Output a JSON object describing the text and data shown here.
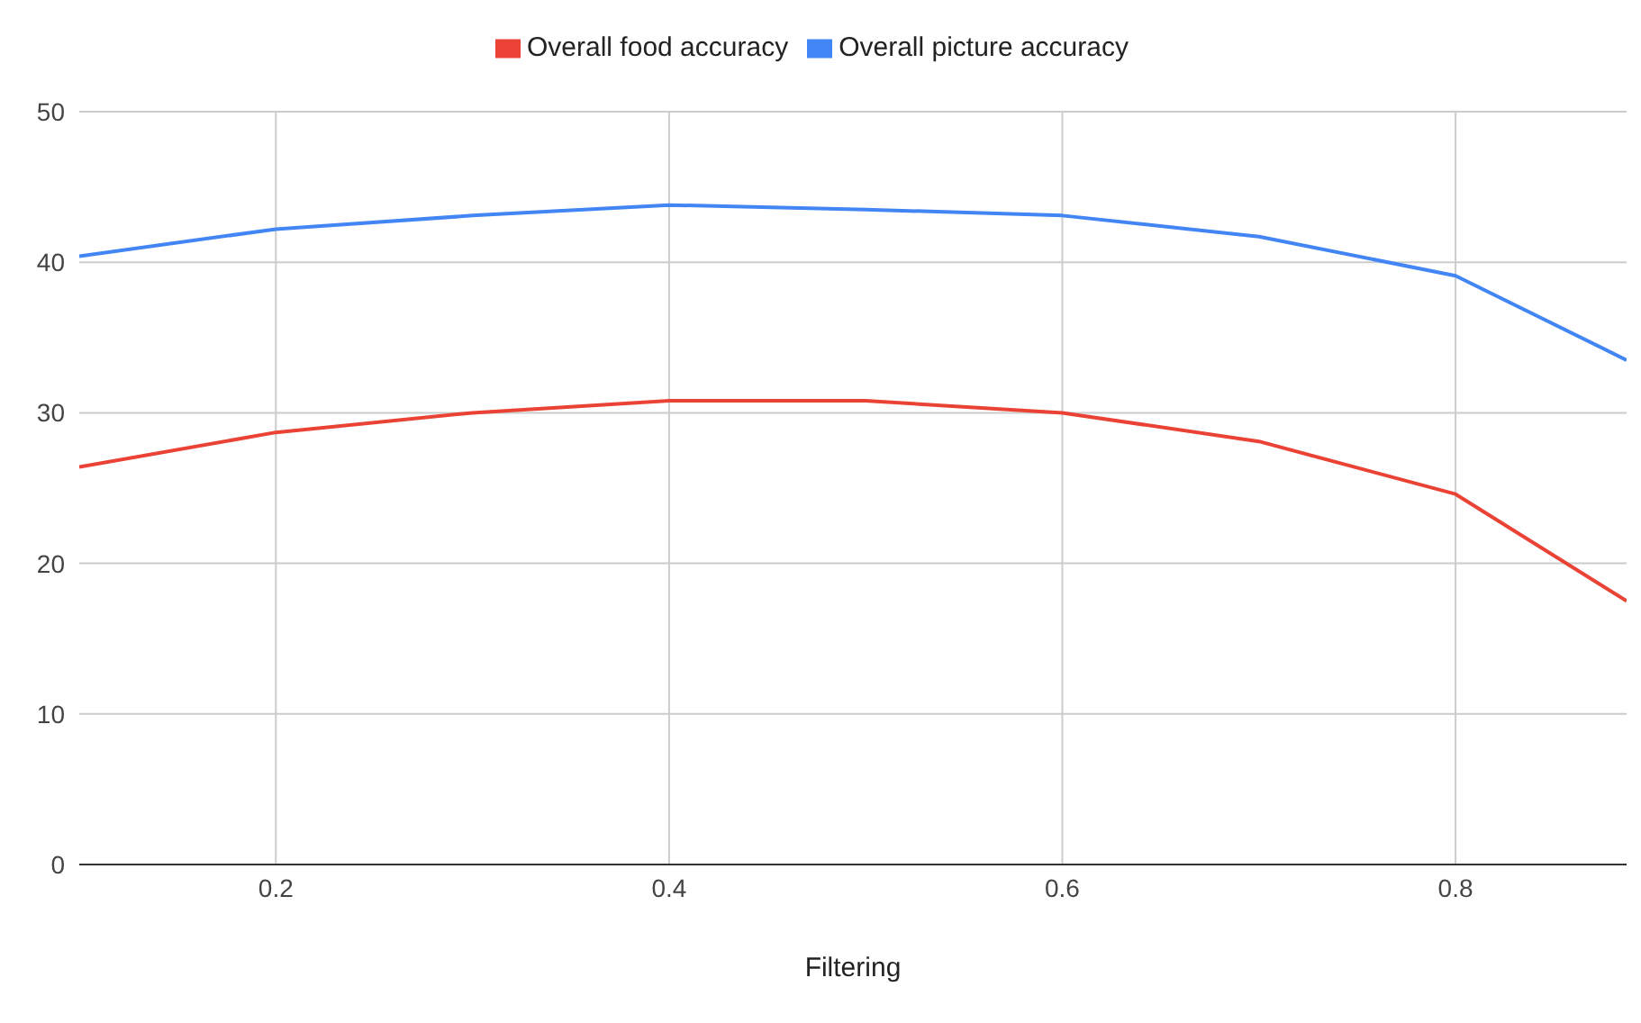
{
  "chart_data": {
    "type": "line",
    "xlabel": "Filtering",
    "x": [
      0.1,
      0.2,
      0.3,
      0.4,
      0.5,
      0.6,
      0.7,
      0.8,
      0.887
    ],
    "series": [
      {
        "name": "Overall picture accuracy",
        "color": "#4285f4",
        "values": [
          40.4,
          42.2,
          43.1,
          43.8,
          43.5,
          43.1,
          41.7,
          39.1,
          33.5
        ]
      },
      {
        "name": "Overall food accuracy",
        "color": "#ea4335",
        "values": [
          26.4,
          28.7,
          30.0,
          30.8,
          30.8,
          30.0,
          28.1,
          24.6,
          17.5
        ]
      }
    ],
    "xlim": [
      0.1,
      0.887
    ],
    "xticks": [
      0.2,
      0.4,
      0.6,
      0.8
    ],
    "ylim": [
      0,
      50
    ],
    "yticks": [
      0,
      10,
      20,
      30,
      40,
      50
    ],
    "grid": true,
    "legend": "top",
    "marker": "none",
    "line_style": "solid"
  }
}
